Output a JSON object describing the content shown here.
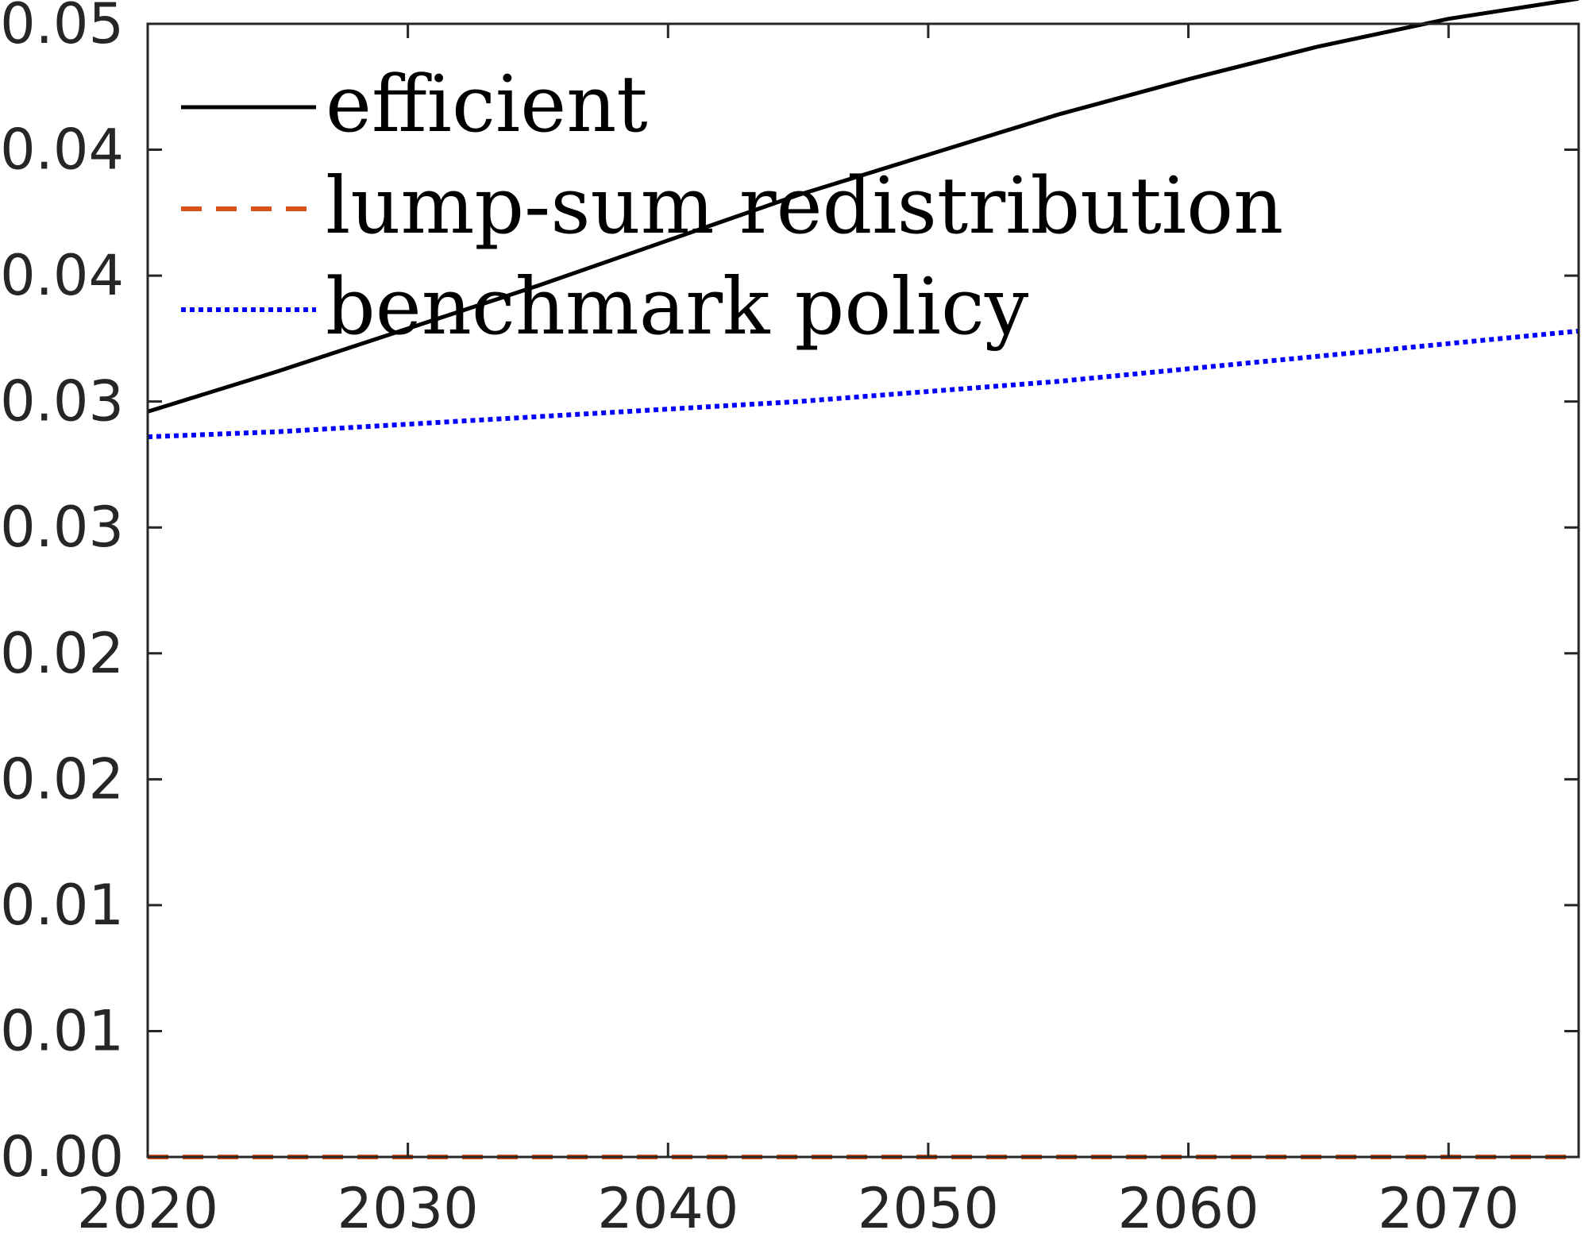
{
  "chart_data": {
    "type": "line",
    "title": "",
    "xlabel": "",
    "ylabel": "",
    "xlim": [
      2020,
      2075
    ],
    "ylim": [
      0,
      0.045
    ],
    "x_ticks": [
      2020,
      2030,
      2040,
      2050,
      2060,
      2070
    ],
    "x_tick_labels": [
      "2020",
      "2030",
      "2040",
      "2050",
      "2060",
      "2070"
    ],
    "y_ticks": [
      0,
      0.005,
      0.01,
      0.015,
      0.02,
      0.025,
      0.03,
      0.035,
      0.04,
      0.045
    ],
    "y_tick_labels": [
      "0.00",
      "0.01",
      "0.01",
      "0.02",
      "0.02",
      "0.03",
      "0.03",
      "0.04",
      "0.04",
      "0.05"
    ],
    "grid": false,
    "legend_position": "top-left",
    "series": [
      {
        "name": "efficient",
        "color": "#000000",
        "style": "solid",
        "x": [
          2020,
          2025,
          2030,
          2035,
          2040,
          2045,
          2050,
          2055,
          2060,
          2065,
          2070,
          2075
        ],
        "y": [
          0.0296,
          0.0312,
          0.0329,
          0.0346,
          0.0364,
          0.0382,
          0.0398,
          0.0414,
          0.0428,
          0.0441,
          0.0452,
          0.046
        ]
      },
      {
        "name": "lump-sum redistribution",
        "color": "#D95319",
        "style": "dashed",
        "x": [
          2020,
          2075
        ],
        "y": [
          0.0,
          0.0
        ]
      },
      {
        "name": "benchmark policy",
        "color": "#0000FF",
        "style": "dotted",
        "x": [
          2020,
          2025,
          2030,
          2035,
          2040,
          2045,
          2050,
          2055,
          2060,
          2065,
          2070,
          2075
        ],
        "y": [
          0.0286,
          0.0288,
          0.0291,
          0.0294,
          0.0297,
          0.03,
          0.0304,
          0.0308,
          0.0313,
          0.0318,
          0.0323,
          0.0328
        ]
      }
    ]
  }
}
